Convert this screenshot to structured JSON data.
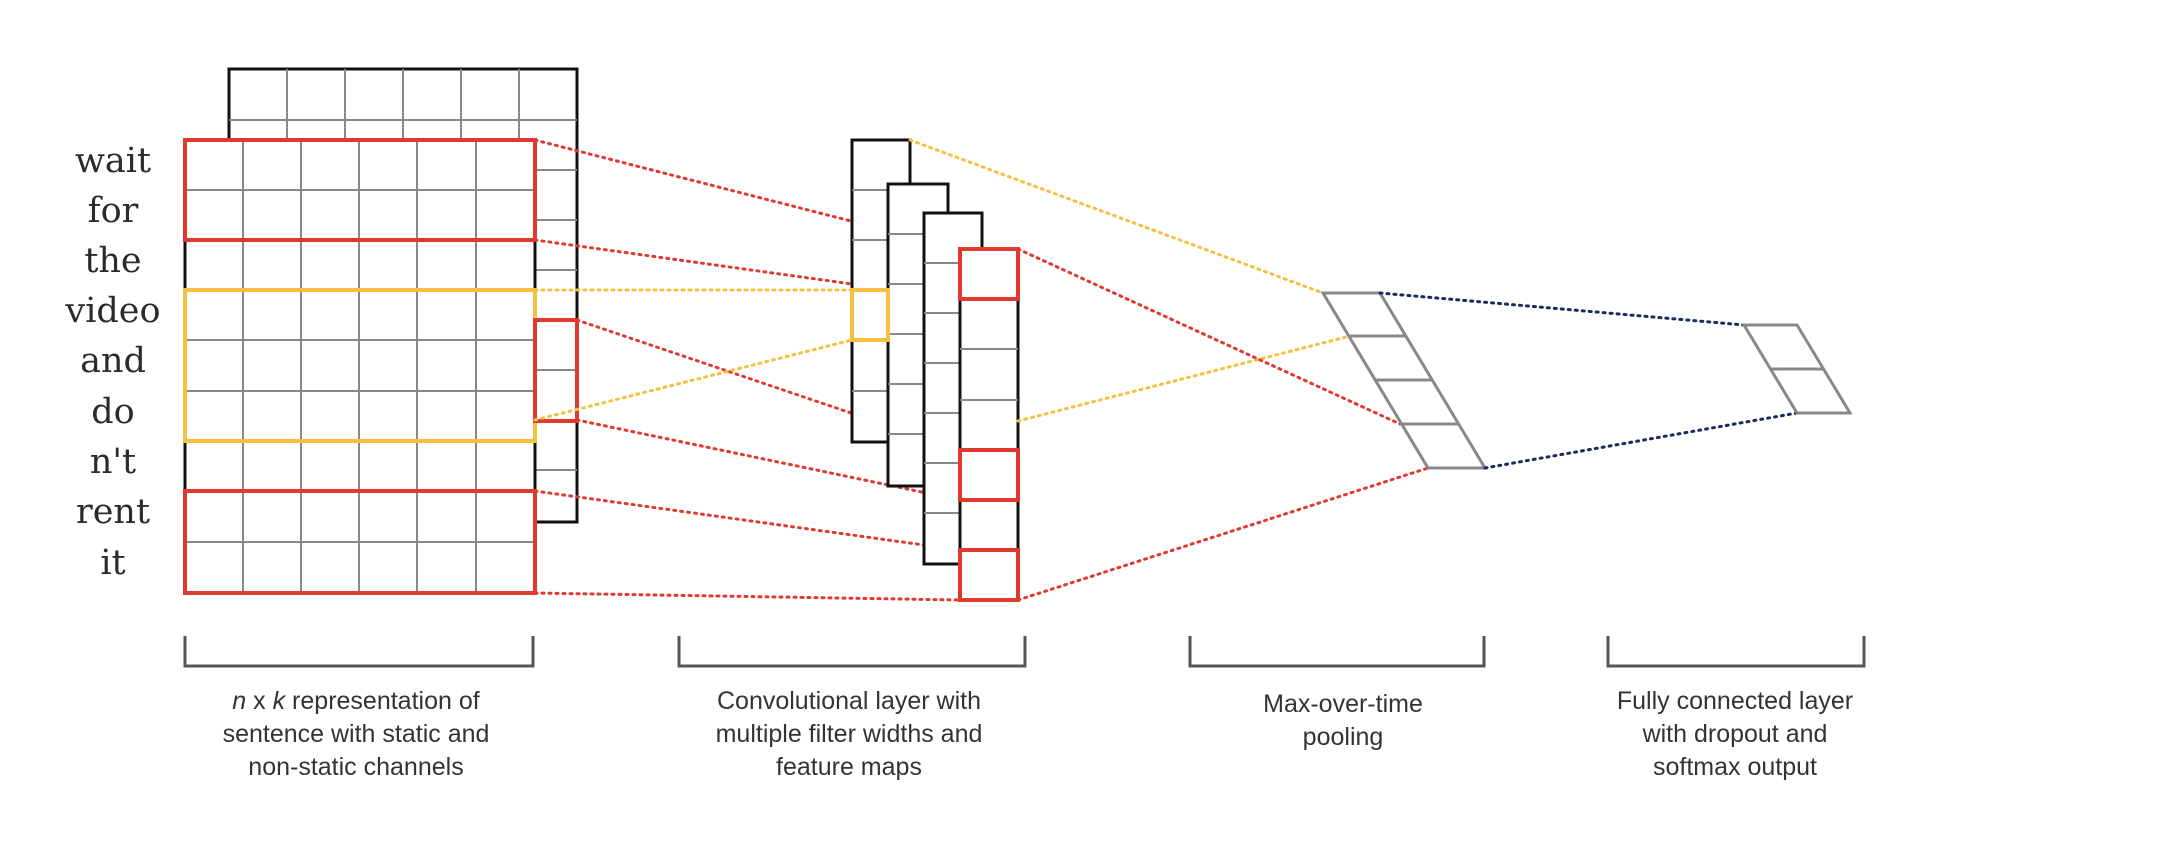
{
  "sentence_words": [
    "wait",
    "for",
    "the",
    "video",
    "and",
    "do",
    "n't",
    "rent",
    "it"
  ],
  "captions": {
    "input": {
      "line1_var_n": "n",
      "line1_x": " x ",
      "line1_var_k": "k",
      "line1_rest": " representation of",
      "line2": "sentence with static and",
      "line3": "non-static channels"
    },
    "conv": [
      "Convolutional layer with",
      "multiple filter widths and",
      "feature maps"
    ],
    "pool": [
      "Max-over-time",
      "pooling"
    ],
    "fc": [
      "Fully connected layer",
      "with dropout and",
      "softmax output"
    ]
  },
  "colors": {
    "red": "#e03a2f",
    "yellow": "#f5c040",
    "navy": "#1d2a5c",
    "grid_gray": "#888888",
    "frame": "#111111"
  }
}
